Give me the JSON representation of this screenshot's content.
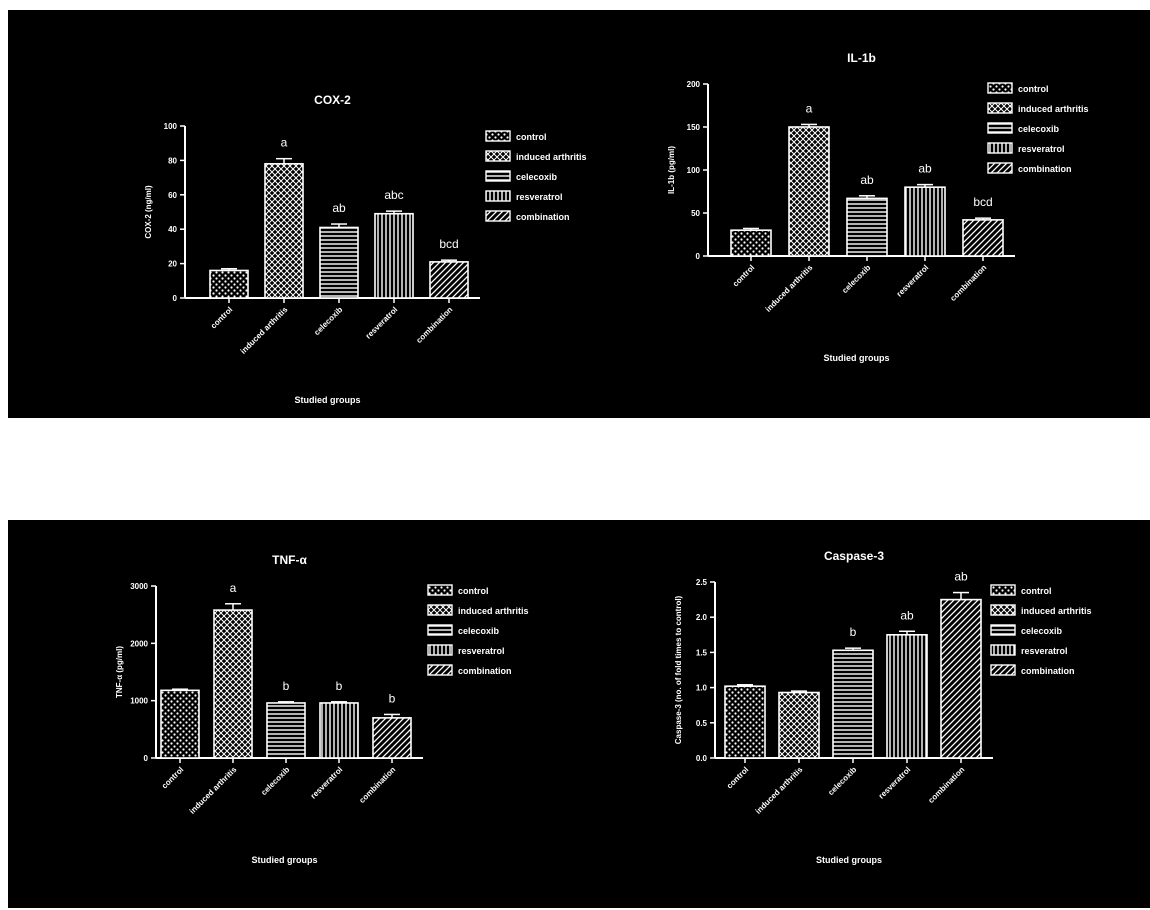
{
  "chart_data": [
    {
      "type": "bar",
      "title": "COX-2",
      "ylabel": "COX-2 (ng/ml)",
      "xlabel": "Studied groups",
      "ylim": [
        0,
        100
      ],
      "yticks": [
        "0",
        "20",
        "40",
        "60",
        "80",
        "100"
      ],
      "categories": [
        "control",
        "induced arthritis",
        "celecoxib",
        "resveratrol",
        "combination"
      ],
      "values": [
        16,
        78,
        41,
        49,
        21
      ],
      "errors": [
        1,
        3,
        2,
        1.5,
        1
      ],
      "annotations": [
        "",
        "a",
        "ab",
        "abc",
        "bcd"
      ],
      "legend": [
        "control",
        "induced arthritis",
        "celecoxib",
        "resveratrol",
        "combination"
      ]
    },
    {
      "type": "bar",
      "title": "IL-1b",
      "ylabel": "IL-1b (pg/ml)",
      "xlabel": "Studied groups",
      "ylim": [
        0,
        200
      ],
      "yticks": [
        "0",
        "50",
        "100",
        "150",
        "200"
      ],
      "categories": [
        "control",
        "induced arthritis",
        "celecoxib",
        "resveratrol",
        "combination"
      ],
      "values": [
        30,
        150,
        67,
        80,
        42
      ],
      "errors": [
        2,
        3,
        3,
        3,
        2
      ],
      "annotations": [
        "",
        "a",
        "ab",
        "ab",
        "bcd"
      ],
      "legend": [
        "control",
        "induced arthritis",
        "celecoxib",
        "resveratrol",
        "combination"
      ]
    },
    {
      "type": "bar",
      "title": "TNF-α",
      "ylabel": "TNF-α (pg/ml)",
      "xlabel": "Studied groups",
      "ylim": [
        0,
        3000
      ],
      "yticks": [
        "0",
        "1000",
        "2000",
        "3000"
      ],
      "categories": [
        "control",
        "induced arthritis",
        "celecoxib",
        "resveratrol",
        "combination"
      ],
      "values": [
        1180,
        2580,
        960,
        960,
        700
      ],
      "errors": [
        20,
        110,
        20,
        20,
        60
      ],
      "annotations": [
        "",
        "a",
        "b",
        "b",
        "b"
      ],
      "legend": [
        "control",
        "induced arthritis",
        "celecoxib",
        "resveratrol",
        "combination"
      ]
    },
    {
      "type": "bar",
      "title": "Caspase-3",
      "ylabel": "Caspase-3 (no. of fold times to control)",
      "xlabel": "Studied groups",
      "ylim": [
        0,
        2.5
      ],
      "yticks": [
        "0.0",
        "0.5",
        "1.0",
        "1.5",
        "2.0",
        "2.5"
      ],
      "categories": [
        "control",
        "induced arthritis",
        "celecoxib",
        "resveratrol",
        "combination"
      ],
      "values": [
        1.02,
        0.93,
        1.53,
        1.75,
        2.25
      ],
      "errors": [
        0.02,
        0.02,
        0.03,
        0.05,
        0.1
      ],
      "annotations": [
        "",
        "",
        "b",
        "ab",
        "ab"
      ],
      "legend": [
        "control",
        "induced arthritis",
        "celecoxib",
        "resveratrol",
        "combination"
      ]
    }
  ]
}
